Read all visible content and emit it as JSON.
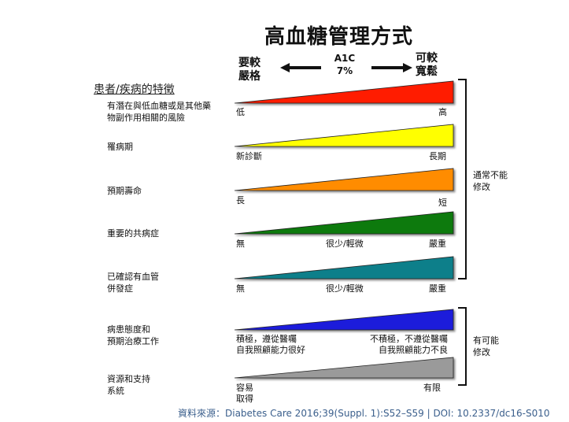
{
  "title": "高血糖管理方式",
  "header": {
    "left_line1": "要較",
    "left_line2": "嚴格",
    "mid_line1": "A1C",
    "mid_line2": "7%",
    "right_line1": "可較",
    "right_line2": "寬鬆"
  },
  "patient_heading": "患者/疾病的特徵",
  "rows": [
    {
      "label_lines": [
        "有潛在與低血糖或是其他藥",
        "物副作用相關的風險"
      ],
      "color": "#ff1a00",
      "left": "低",
      "mid": "",
      "right": "高"
    },
    {
      "label_lines": [
        "罹病期"
      ],
      "color": "#ffff00",
      "left": "新診斷",
      "mid": "",
      "right": "長期"
    },
    {
      "label_lines": [
        "預期壽命"
      ],
      "color": "#ff8c00",
      "left": "長",
      "mid": "",
      "right": "短"
    },
    {
      "label_lines": [
        "重要的共病症"
      ],
      "color": "#0a7a0a",
      "left": "無",
      "mid": "很少/輕微",
      "right": "嚴重"
    },
    {
      "label_lines": [
        "已確認有血管",
        "併發症"
      ],
      "color": "#0e7f8a",
      "left": "無",
      "mid": "很少/輕微",
      "right": "嚴重"
    },
    {
      "label_lines": [
        "病患態度和",
        "預期治療工作"
      ],
      "color": "#1a1adb",
      "left_lines": [
        "積極，遵從醫囑",
        "自我照顧能力很好"
      ],
      "right_lines": [
        "不積極，不遵從醫囑",
        "自我照顧能力不良"
      ]
    },
    {
      "label_lines": [
        "資源和支持",
        "系統"
      ],
      "color": "#9a9a9a",
      "left_lines": [
        "容易",
        "取得"
      ],
      "right": "有限"
    }
  ],
  "bracket_notes": {
    "upper_line1": "通常不能",
    "upper_line2": "修改",
    "lower_line1": "有可能",
    "lower_line2": "修改"
  },
  "source": "資料來源：Diabetes Care 2016;39(Suppl. 1):S52–S59 | DOI: 10.2337/dc16-S010"
}
